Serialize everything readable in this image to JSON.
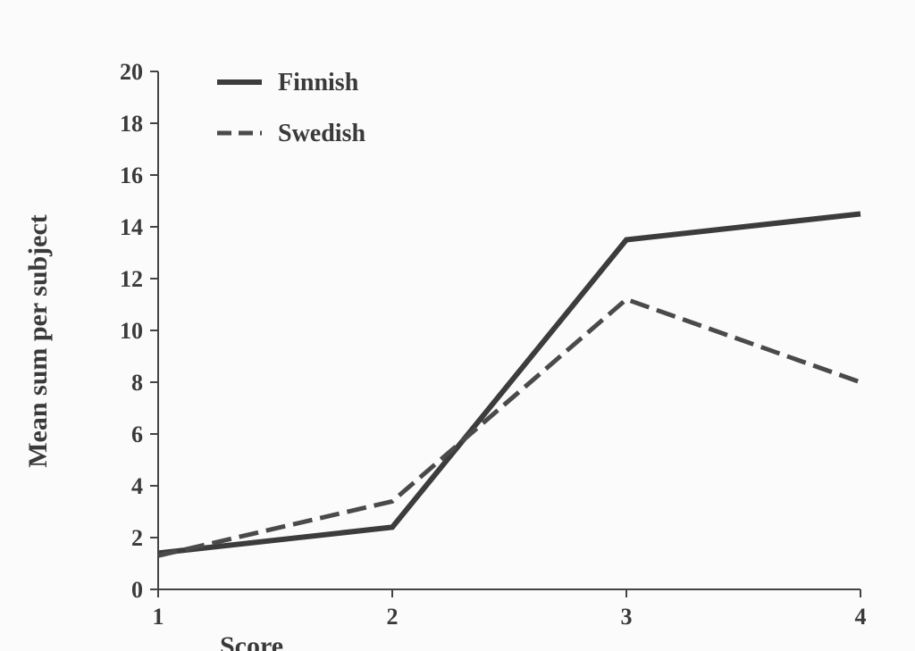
{
  "chart_data": {
    "type": "line",
    "title": "",
    "xlabel": "Score",
    "ylabel": "Mean sum per subject",
    "x": [
      1,
      2,
      3,
      4
    ],
    "x_ticks": [
      "1",
      "2",
      "3",
      "4"
    ],
    "y_ticks": [
      "0",
      "2",
      "4",
      "6",
      "8",
      "10",
      "12",
      "14",
      "16",
      "18",
      "20"
    ],
    "xlim": [
      1,
      4
    ],
    "ylim": [
      0,
      20
    ],
    "grid": false,
    "legend_position": "top-left",
    "series": [
      {
        "name": "Finnish",
        "values": [
          1.4,
          2.4,
          13.5,
          14.5
        ],
        "style": "solid",
        "color": "#3c3c3c"
      },
      {
        "name": "Swedish",
        "values": [
          1.3,
          3.4,
          11.2,
          8.0
        ],
        "style": "dashed",
        "color": "#4a4a4a"
      }
    ]
  }
}
